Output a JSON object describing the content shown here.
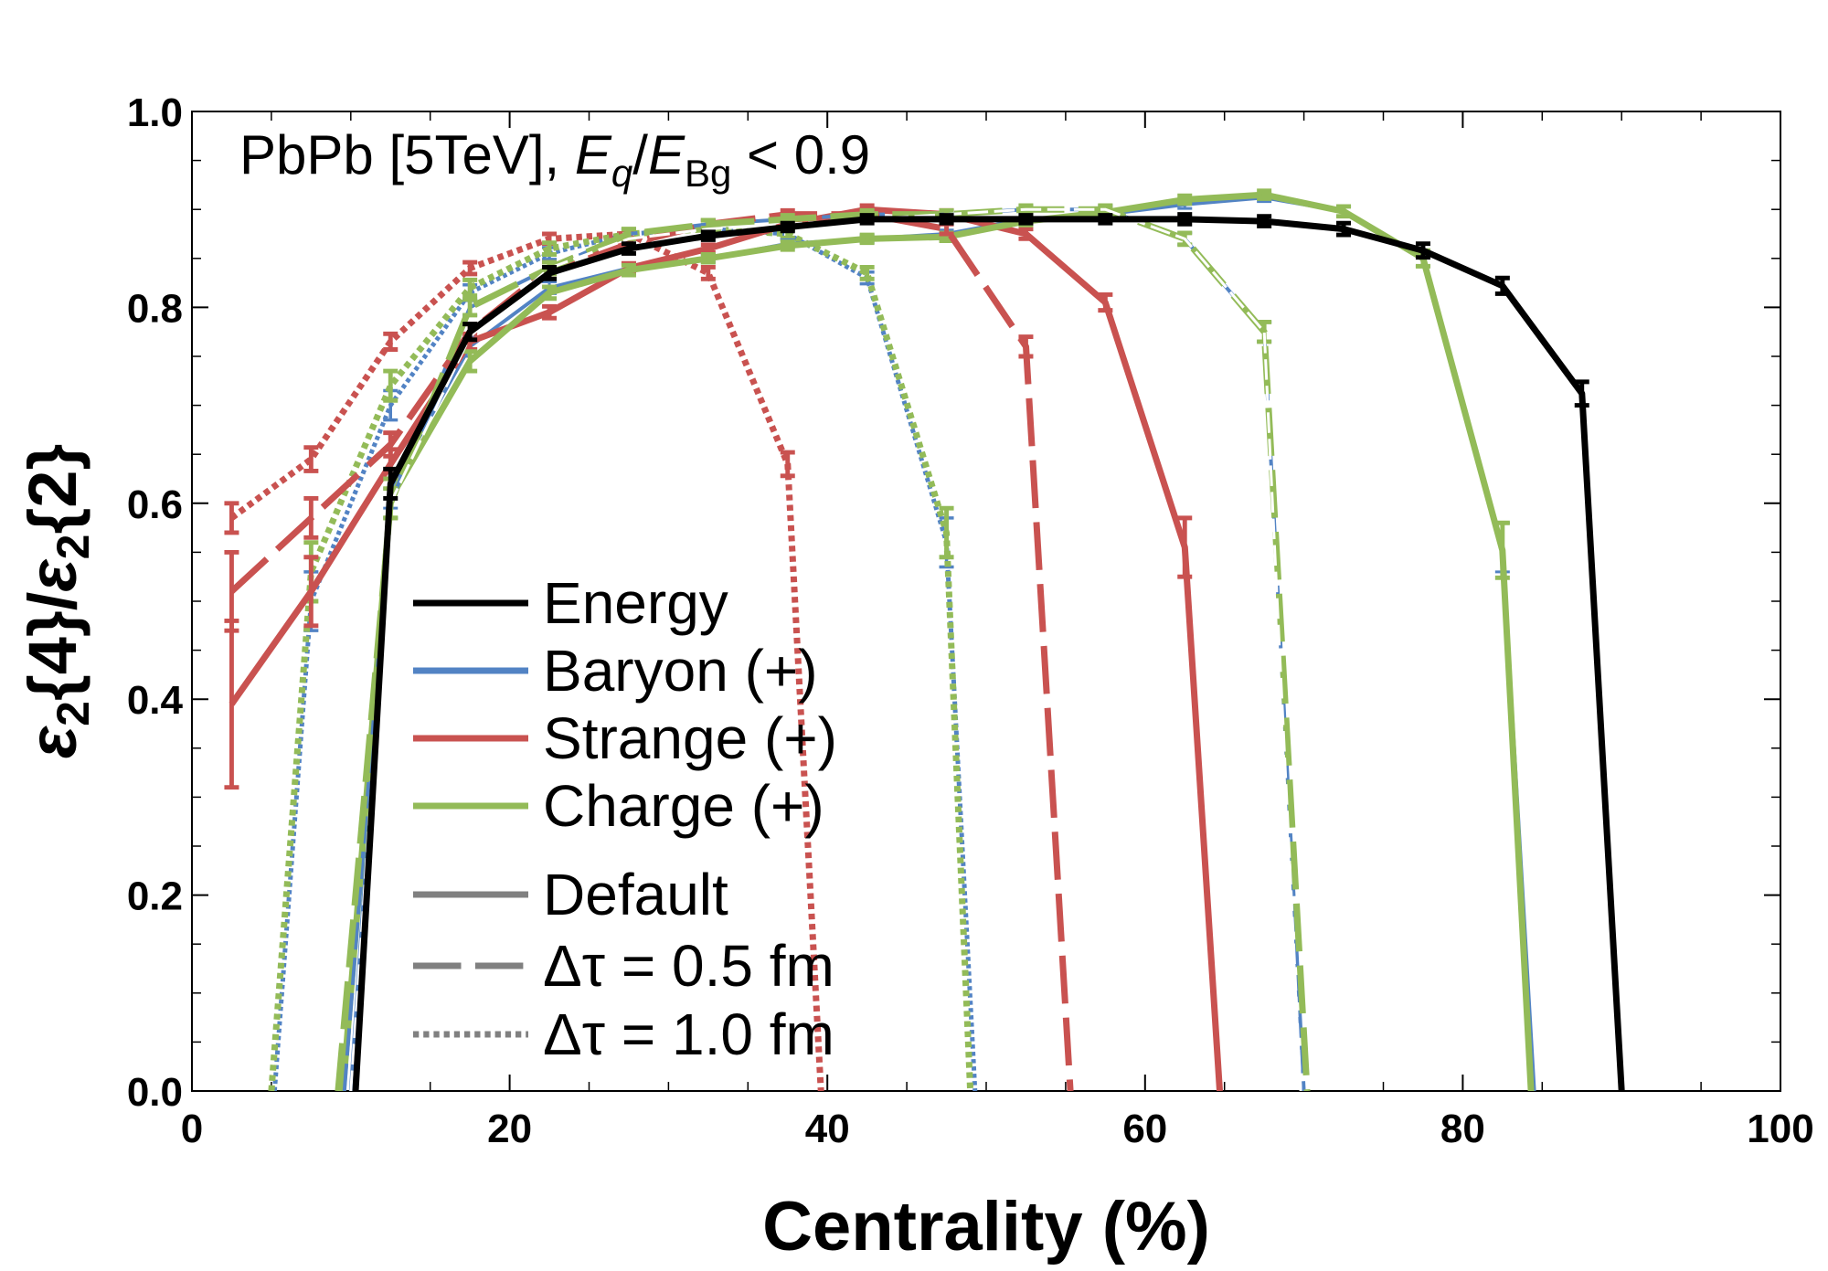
{
  "chart_data": {
    "type": "line",
    "title": "",
    "annotation": {
      "prefix": "PbPb [5TeV], ",
      "num_var": "E",
      "num_sub": "q",
      "slash": "/",
      "den_var": "E",
      "den_sub": "Bg",
      "suffix": " < 0.9"
    },
    "xlabel": "Centrality (%)",
    "ylabel": {
      "p1": "ε",
      "s1": "2",
      "p2": "{4}/",
      "p3": "ε",
      "s2": "2",
      "p4": "{2}"
    },
    "xlim": [
      0,
      100
    ],
    "ylim": [
      0,
      1.0
    ],
    "xticks": [
      "0",
      "20",
      "40",
      "60",
      "80",
      "100"
    ],
    "yticks": [
      "0.0",
      "0.2",
      "0.4",
      "0.6",
      "0.8",
      "1.0"
    ],
    "grid": false,
    "legend_position": "center-left",
    "legend": {
      "colors": [
        {
          "name": "Energy",
          "color": "#000000"
        },
        {
          "name": "Baryon (+)",
          "color": "#5283c4"
        },
        {
          "name": "Strange (+)",
          "color": "#c95250"
        },
        {
          "name": "Charge (+)",
          "color": "#93bb58"
        }
      ],
      "styles": [
        {
          "name": "Default",
          "dash": "solid"
        },
        {
          "name": "Δτ = 0.5 fm",
          "dash": "dashed"
        },
        {
          "name": "Δτ = 1.0 fm",
          "dash": "dotted"
        }
      ]
    },
    "series": [
      {
        "label": "Energy / default",
        "color": "#000000",
        "dash": "solid",
        "width": 7,
        "x": [
          10.3,
          12.5,
          17.5,
          22.5,
          27.5,
          32.5,
          37.5,
          42.5,
          47.5,
          52.5,
          57.5,
          62.5,
          67.5,
          72.5,
          77.5,
          82.5,
          87.5,
          90.0
        ],
        "y": [
          0.0,
          0.62,
          0.775,
          0.835,
          0.86,
          0.873,
          0.882,
          0.89,
          0.89,
          0.89,
          0.89,
          0.89,
          0.888,
          0.88,
          0.858,
          0.822,
          0.712,
          0.0
        ],
        "err": [
          0,
          0.015,
          0.008,
          0.006,
          0.005,
          0.004,
          0.004,
          0.004,
          0.004,
          0.004,
          0.004,
          0.005,
          0.005,
          0.006,
          0.007,
          0.008,
          0.012,
          0
        ]
      },
      {
        "label": "Baryon / default",
        "color": "#5283c4",
        "dash": "solid",
        "width": 4,
        "x": [
          10.0,
          12.5,
          17.5,
          22.5,
          27.5,
          32.5,
          37.5,
          42.5,
          47.5,
          52.5,
          57.5,
          62.5,
          67.5,
          72.5,
          77.5,
          82.5,
          84.5
        ],
        "y": [
          0.0,
          0.615,
          0.76,
          0.82,
          0.84,
          0.85,
          0.865,
          0.87,
          0.875,
          0.89,
          0.895,
          0.905,
          0.912,
          0.898,
          0.85,
          0.555,
          0.0
        ],
        "err": [
          0,
          0.02,
          0.01,
          0.006,
          0.005,
          0.004,
          0.004,
          0.004,
          0.004,
          0.004,
          0.004,
          0.004,
          0.004,
          0.005,
          0.008,
          0.025,
          0
        ]
      },
      {
        "label": "Strange / default",
        "color": "#c95250",
        "dash": "solid",
        "width": 7,
        "x": [
          2.5,
          7.5,
          12.5,
          17.5,
          22.5,
          27.5,
          32.5,
          37.5,
          42.5,
          47.5,
          52.5,
          57.5,
          62.5,
          64.7
        ],
        "y": [
          0.395,
          0.51,
          0.64,
          0.765,
          0.795,
          0.84,
          0.86,
          0.885,
          0.9,
          0.895,
          0.875,
          0.805,
          0.555,
          0.0
        ],
        "err": [
          0.085,
          0.035,
          0.015,
          0.008,
          0.006,
          0.005,
          0.004,
          0.004,
          0.004,
          0.004,
          0.005,
          0.008,
          0.03,
          0
        ]
      },
      {
        "label": "Charge / default",
        "color": "#93bb58",
        "dash": "solid",
        "width": 7,
        "x": [
          9.5,
          12.5,
          17.5,
          22.5,
          27.5,
          32.5,
          37.5,
          42.5,
          47.5,
          52.5,
          57.5,
          62.5,
          67.5,
          72.5,
          77.5,
          82.5,
          84.3
        ],
        "y": [
          0.0,
          0.605,
          0.745,
          0.815,
          0.838,
          0.85,
          0.863,
          0.87,
          0.872,
          0.888,
          0.897,
          0.91,
          0.915,
          0.898,
          0.85,
          0.552,
          0.0
        ],
        "err": [
          0,
          0.02,
          0.01,
          0.006,
          0.005,
          0.004,
          0.004,
          0.004,
          0.004,
          0.004,
          0.004,
          0.004,
          0.004,
          0.005,
          0.008,
          0.028,
          0
        ]
      },
      {
        "label": "Energy / Δτ = 0.5 fm",
        "color": "#ffffff",
        "dash": "dashed",
        "width": 3,
        "x": [
          10.0,
          12.5,
          17.5,
          22.5,
          27.5,
          32.5,
          37.5,
          42.5,
          47.5,
          52.5,
          57.5,
          62.5,
          67.5,
          69.8
        ],
        "y": [
          0.0,
          0.6,
          0.77,
          0.84,
          0.87,
          0.88,
          0.885,
          0.89,
          0.895,
          0.9,
          0.9,
          0.87,
          0.775,
          0.0
        ],
        "err": [
          0,
          0,
          0,
          0,
          0,
          0,
          0,
          0,
          0,
          0,
          0,
          0,
          0,
          0
        ]
      },
      {
        "label": "Baryon / Δτ = 0.5 fm",
        "color": "#5283c4",
        "dash": "dashed",
        "width": 4,
        "x": [
          9.6,
          12.5,
          17.5,
          22.5,
          27.5,
          32.5,
          37.5,
          42.5,
          47.5,
          52.5,
          57.5,
          62.5,
          67.5,
          70.0
        ],
        "y": [
          0.0,
          0.6,
          0.8,
          0.84,
          0.875,
          0.885,
          0.89,
          0.895,
          0.895,
          0.9,
          0.9,
          0.87,
          0.775,
          0.0
        ],
        "err": [
          0,
          0.015,
          0.008,
          0.006,
          0.005,
          0.004,
          0.004,
          0.004,
          0.004,
          0.004,
          0.004,
          0.006,
          0.01,
          0
        ]
      },
      {
        "label": "Strange / Δτ = 0.5 fm",
        "color": "#c95250",
        "dash": "dashed",
        "width": 7,
        "x": [
          2.5,
          7.5,
          12.5,
          17.5,
          22.5,
          27.5,
          32.5,
          37.5,
          42.5,
          47.5,
          52.5,
          55.3
        ],
        "y": [
          0.51,
          0.585,
          0.66,
          0.775,
          0.84,
          0.865,
          0.885,
          0.895,
          0.895,
          0.88,
          0.76,
          0.0
        ],
        "err": [
          0.04,
          0.02,
          0.012,
          0.008,
          0.006,
          0.005,
          0.004,
          0.004,
          0.004,
          0.005,
          0.01,
          0
        ]
      },
      {
        "label": "Charge / Δτ = 0.5 fm",
        "color": "#93bb58",
        "dash": "dashed",
        "width": 7,
        "x": [
          9.2,
          12.5,
          17.5,
          22.5,
          27.5,
          32.5,
          37.5,
          42.5,
          47.5,
          52.5,
          57.5,
          62.5,
          67.5,
          70.2
        ],
        "y": [
          0.0,
          0.6,
          0.8,
          0.84,
          0.875,
          0.885,
          0.89,
          0.895,
          0.895,
          0.9,
          0.9,
          0.87,
          0.775,
          0.0
        ],
        "err": [
          0,
          0.015,
          0.008,
          0.006,
          0.005,
          0.004,
          0.004,
          0.004,
          0.004,
          0.004,
          0.004,
          0.006,
          0.01,
          0
        ]
      },
      {
        "label": "Baryon / Δτ = 1.0 fm",
        "color": "#5283c4",
        "dash": "dotted",
        "width": 5,
        "x": [
          5.2,
          7.5,
          12.5,
          17.5,
          22.5,
          27.5,
          32.5,
          37.5,
          42.5,
          47.5,
          49.3
        ],
        "y": [
          0.0,
          0.5,
          0.7,
          0.815,
          0.855,
          0.875,
          0.88,
          0.875,
          0.83,
          0.56,
          0.0
        ],
        "err": [
          0,
          0.03,
          0.015,
          0.008,
          0.006,
          0.005,
          0.004,
          0.004,
          0.006,
          0.025,
          0
        ]
      },
      {
        "label": "Strange / Δτ = 1.0 fm",
        "color": "#c95250",
        "dash": "dotted",
        "width": 7,
        "x": [
          2.5,
          7.5,
          12.5,
          17.5,
          22.5,
          27.5,
          32.5,
          37.5,
          39.6
        ],
        "y": [
          0.585,
          0.645,
          0.765,
          0.84,
          0.87,
          0.875,
          0.835,
          0.64,
          0.0
        ],
        "err": [
          0.015,
          0.012,
          0.008,
          0.006,
          0.005,
          0.004,
          0.006,
          0.012,
          0
        ]
      },
      {
        "label": "Charge / Δτ = 1.0 fm",
        "color": "#93bb58",
        "dash": "dotted",
        "width": 7,
        "x": [
          5.0,
          7.5,
          12.5,
          17.5,
          22.5,
          27.5,
          32.5,
          37.5,
          42.5,
          47.5,
          49.0
        ],
        "y": [
          0.0,
          0.53,
          0.72,
          0.82,
          0.86,
          0.875,
          0.88,
          0.875,
          0.835,
          0.57,
          0.0
        ],
        "err": [
          0,
          0.03,
          0.015,
          0.008,
          0.006,
          0.005,
          0.004,
          0.004,
          0.006,
          0.025,
          0
        ]
      }
    ]
  }
}
